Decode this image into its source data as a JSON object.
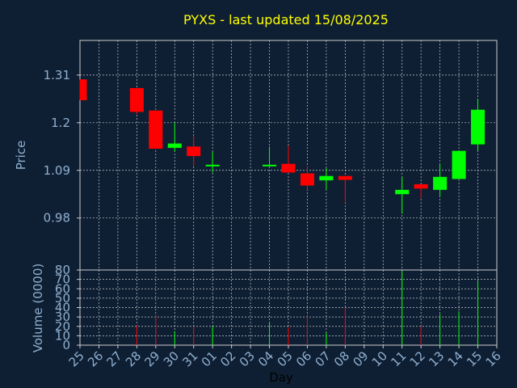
{
  "chart_data": {
    "type": "candlestick",
    "title": "PYXS - last updated 15/08/2025",
    "xlabel": "Day",
    "x_ticks": [
      "25",
      "26",
      "27",
      "28",
      "29",
      "30",
      "31",
      "01",
      "02",
      "03",
      "04",
      "05",
      "06",
      "07",
      "08",
      "09",
      "10",
      "11",
      "12",
      "13",
      "14",
      "15",
      "16"
    ],
    "price_panel": {
      "ylabel": "Price",
      "ylim": [
        0.86,
        1.39
      ],
      "yticks": [
        "1.31",
        "1.2",
        "1.09",
        "0.98"
      ],
      "ytick_values": [
        1.31,
        1.2,
        1.09,
        0.98
      ],
      "grid": true
    },
    "volume_panel": {
      "ylabel": "Volume (0000)",
      "ylim": [
        0,
        80
      ],
      "yticks": [
        "80",
        "70",
        "60",
        "50",
        "40",
        "30",
        "20",
        "10",
        "0"
      ],
      "ytick_values": [
        80,
        70,
        60,
        50,
        40,
        30,
        20,
        10,
        0
      ],
      "grid": true
    },
    "colors": {
      "up": "#00ff00",
      "down": "#ff0000",
      "title": "#ffff00",
      "axis_text": "#8fb0d0",
      "grid": "#ffffff"
    },
    "candles": [
      {
        "day": "25",
        "open": 1.3,
        "close": 1.252,
        "high": 1.3,
        "low": 1.252,
        "volume": null
      },
      {
        "day": "28",
        "open": 1.28,
        "close": 1.225,
        "high": 1.28,
        "low": 1.22,
        "volume": 21
      },
      {
        "day": "29",
        "open": 1.228,
        "close": 1.14,
        "high": 1.228,
        "low": 1.14,
        "volume": 31
      },
      {
        "day": "30",
        "open": 1.142,
        "close": 1.152,
        "high": 1.2,
        "low": 1.133,
        "volume": 15
      },
      {
        "day": "31",
        "open": 1.145,
        "close": 1.123,
        "high": 1.17,
        "low": 1.1,
        "volume": 20
      },
      {
        "day": "01",
        "open": 1.1,
        "close": 1.103,
        "high": 1.133,
        "low": 1.085,
        "volume": 20
      },
      {
        "day": "04",
        "open": 1.1,
        "close": 1.103,
        "high": 1.145,
        "low": 1.1,
        "volume": 25
      },
      {
        "day": "05",
        "open": 1.105,
        "close": 1.085,
        "high": 1.147,
        "low": 1.085,
        "volume": 19
      },
      {
        "day": "06",
        "open": 1.083,
        "close": 1.055,
        "high": 1.1,
        "low": 1.045,
        "volume": 31
      },
      {
        "day": "07",
        "open": 1.067,
        "close": 1.077,
        "high": 1.095,
        "low": 1.045,
        "volume": 13
      },
      {
        "day": "08",
        "open": 1.077,
        "close": 1.068,
        "high": 1.077,
        "low": 1.015,
        "volume": 40
      },
      {
        "day": "11",
        "open": 1.035,
        "close": 1.045,
        "high": 1.075,
        "low": 0.99,
        "volume": 79
      },
      {
        "day": "12",
        "open": 1.058,
        "close": 1.048,
        "high": 1.058,
        "low": 1.025,
        "volume": 20
      },
      {
        "day": "13",
        "open": 1.045,
        "close": 1.075,
        "high": 1.105,
        "low": 1.03,
        "volume": 33
      },
      {
        "day": "14",
        "open": 1.07,
        "close": 1.135,
        "high": 1.135,
        "low": 1.07,
        "volume": 36
      },
      {
        "day": "15",
        "open": 1.15,
        "close": 1.23,
        "high": 1.255,
        "low": 1.135,
        "volume": 68
      }
    ]
  }
}
